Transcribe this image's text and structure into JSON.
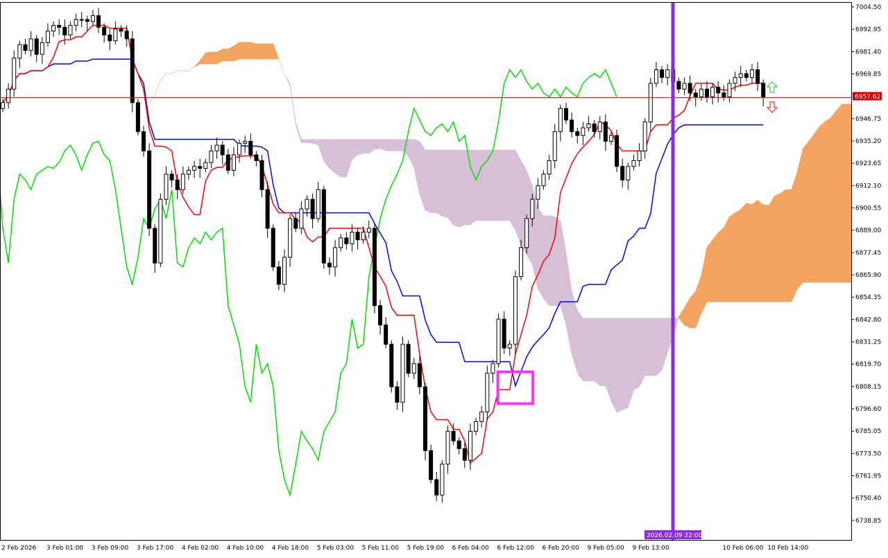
{
  "chart_data": {
    "type": "candlestick",
    "price_axis": {
      "ticks": [
        "7004.50",
        "6992.95",
        "6981.40",
        "6969.85",
        "6957.62",
        "6946.75",
        "6935.20",
        "6923.65",
        "6912.10",
        "6900.55",
        "6889.00",
        "6877.45",
        "6865.90",
        "6854.35",
        "6842.80",
        "6831.25",
        "6819.70",
        "6808.15",
        "6796.60",
        "6785.05",
        "6773.50",
        "6761.95",
        "6750.40",
        "6738.85"
      ],
      "range": [
        6730,
        7008
      ]
    },
    "time_axis": {
      "ticks": [
        "2 Feb 2026",
        "3 Feb 01:00",
        "3 Feb 09:00",
        "3 Feb 17:00",
        "4 Feb 02:00",
        "4 Feb 10:00",
        "4 Feb 18:00",
        "5 Feb 03:00",
        "5 Feb 11:00",
        "5 Feb 19:00",
        "6 Feb 04:00",
        "6 Feb 12:00",
        "6 Feb 20:00",
        "9 Feb 05:00",
        "9 Feb 13:00",
        "10 Feb 06:00",
        "10 Feb 14:00"
      ],
      "tick_bar_index": [
        0,
        8,
        16,
        24,
        32,
        40,
        48,
        56,
        64,
        72,
        80,
        88,
        96,
        104,
        112,
        128,
        136
      ]
    },
    "close": [
      6955,
      6962,
      6978,
      6985,
      6982,
      6988,
      6980,
      6986,
      6992,
      6995,
      6994,
      6990,
      6995,
      6998,
      6998,
      6997,
      7000,
      6994,
      6990,
      6987,
      6993,
      6992,
      6988,
      6955,
      6940,
      6930,
      6890,
      6872,
      6905,
      6918,
      6915,
      6910,
      6918,
      6920,
      6922,
      6921,
      6924,
      6930,
      6933,
      6928,
      6920,
      6928,
      6934,
      6935,
      6928,
      6925,
      6910,
      6890,
      6870,
      6861,
      6875,
      6895,
      6890,
      6900,
      6905,
      6895,
      6910,
      6872,
      6870,
      6880,
      6885,
      6882,
      6888,
      6884,
      6888,
      6890,
      6850,
      6840,
      6830,
      6808,
      6800,
      6830,
      6815,
      6820,
      6808,
      6775,
      6760,
      6752,
      6768,
      6785,
      6780,
      6776,
      6770,
      6785,
      6790,
      6795,
      6815,
      6820,
      6843,
      6828,
      6830,
      6865,
      6880,
      6895,
      6905,
      6912,
      6918,
      6925,
      6940,
      6952,
      6946,
      6940,
      6938,
      6942,
      6944,
      6940,
      6945,
      6935,
      6938,
      6922,
      6915,
      6922,
      6925,
      6930,
      6945,
      6965,
      6972,
      6968,
      6972,
      6966,
      6962,
      6965,
      6960,
      6958,
      6962,
      6958,
      6963,
      6960,
      6958,
      6965,
      6968,
      6970,
      6968,
      6972,
      6965,
      6958
    ],
    "current_price": "6957.62",
    "vertical_marker_label": "2026.02.09 22:00",
    "colors": {
      "bull_cloud": "#f4a460",
      "bear_cloud": "#d8bfd8",
      "tenkan": "#ff0000",
      "kijun": "#0000ff",
      "chikou": "#00e000",
      "price_line": "#d40000",
      "vertical_marker": "#8a2be2",
      "highlight_box": "#ff33ff",
      "up_arrow": "#33cc33",
      "down_arrow": "#ff2222"
    },
    "highlight_box_range": {
      "bars": [
        88,
        93
      ],
      "prices": [
        6800,
        6815
      ]
    },
    "vertical_marker_bar": 119
  }
}
